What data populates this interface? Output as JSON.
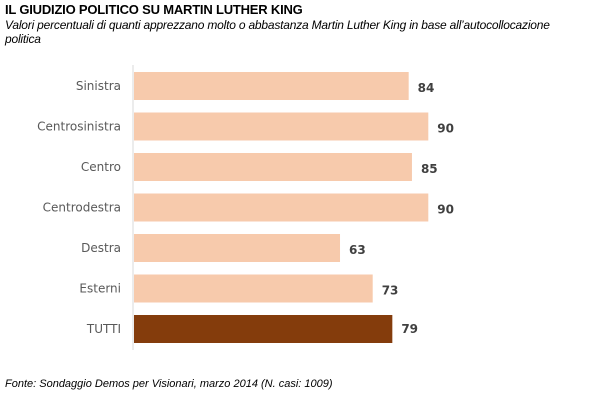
{
  "chart_data": {
    "type": "bar",
    "orientation": "horizontal",
    "title": "IL GIUDIZIO POLITICO  SU MARTIN LUTHER KING",
    "subtitle": "Valori percentuali di quanti apprezzano molto o abbastanza Martin Luther King in base all’autocollocazione politica",
    "categories": [
      "Sinistra",
      "Centrosinistra",
      "Centro",
      "Centrodestra",
      "Destra",
      "Esterni",
      "TUTTI"
    ],
    "values": [
      84,
      90,
      85,
      90,
      63,
      73,
      79
    ],
    "highlight_category": "TUTTI",
    "colors": {
      "bar": "#f7caac",
      "highlight": "#843c0c",
      "axis": "#d9d9d9"
    },
    "xlim": [
      0,
      100
    ],
    "grid": false,
    "xlabel": "",
    "ylabel": "",
    "source": "Fonte: Sondaggio Demos per Visionari, marzo 2014 (N. casi: 1009)"
  }
}
